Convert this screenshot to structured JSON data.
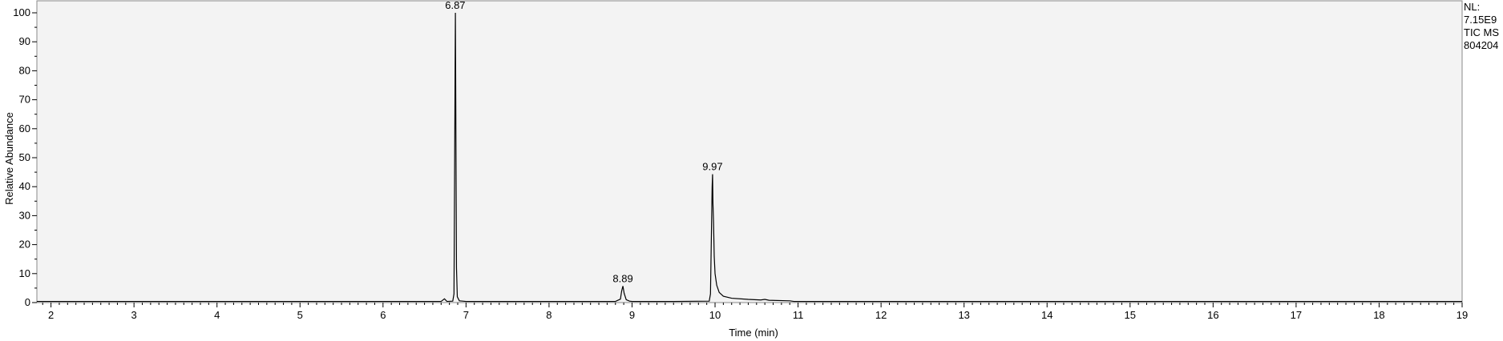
{
  "chart_data": {
    "type": "line",
    "xlabel": "Time (min)",
    "ylabel": "Relative Abundance",
    "xlim": [
      1.83,
      19.0
    ],
    "ylim": [
      0,
      100
    ],
    "x_ticks": [
      2,
      3,
      4,
      5,
      6,
      7,
      8,
      9,
      10,
      11,
      12,
      13,
      14,
      15,
      16,
      17,
      18,
      19
    ],
    "y_ticks": [
      0,
      10,
      20,
      30,
      40,
      50,
      60,
      70,
      80,
      90,
      100
    ],
    "grid": false,
    "line_color": "#000000",
    "series": [
      {
        "values": [
          {
            "x": 1.83,
            "y": 0.4
          },
          {
            "x": 3.0,
            "y": 0.4
          },
          {
            "x": 5.0,
            "y": 0.4
          },
          {
            "x": 6.7,
            "y": 0.4
          },
          {
            "x": 6.74,
            "y": 1.3
          },
          {
            "x": 6.77,
            "y": 0.4
          },
          {
            "x": 6.84,
            "y": 0.5
          },
          {
            "x": 6.855,
            "y": 3.0
          },
          {
            "x": 6.862,
            "y": 42.0
          },
          {
            "x": 6.868,
            "y": 78.0
          },
          {
            "x": 6.872,
            "y": 100.0
          },
          {
            "x": 6.878,
            "y": 60.0
          },
          {
            "x": 6.885,
            "y": 12.0
          },
          {
            "x": 6.895,
            "y": 2.0
          },
          {
            "x": 6.92,
            "y": 0.6
          },
          {
            "x": 7.0,
            "y": 0.4
          },
          {
            "x": 8.0,
            "y": 0.4
          },
          {
            "x": 8.8,
            "y": 0.4
          },
          {
            "x": 8.86,
            "y": 1.2
          },
          {
            "x": 8.875,
            "y": 4.0
          },
          {
            "x": 8.89,
            "y": 5.7
          },
          {
            "x": 8.905,
            "y": 3.2
          },
          {
            "x": 8.93,
            "y": 1.0
          },
          {
            "x": 8.97,
            "y": 0.5
          },
          {
            "x": 9.0,
            "y": 0.4
          },
          {
            "x": 9.5,
            "y": 0.4
          },
          {
            "x": 9.93,
            "y": 0.5
          },
          {
            "x": 9.945,
            "y": 3.0
          },
          {
            "x": 9.955,
            "y": 21.5
          },
          {
            "x": 9.965,
            "y": 40.0
          },
          {
            "x": 9.97,
            "y": 44.3
          },
          {
            "x": 9.975,
            "y": 34.0
          },
          {
            "x": 9.982,
            "y": 27.5
          },
          {
            "x": 9.99,
            "y": 16.0
          },
          {
            "x": 10.0,
            "y": 10.0
          },
          {
            "x": 10.02,
            "y": 6.0
          },
          {
            "x": 10.05,
            "y": 3.5
          },
          {
            "x": 10.1,
            "y": 2.2
          },
          {
            "x": 10.2,
            "y": 1.5
          },
          {
            "x": 10.4,
            "y": 1.1
          },
          {
            "x": 10.55,
            "y": 0.9
          },
          {
            "x": 10.6,
            "y": 1.1
          },
          {
            "x": 10.65,
            "y": 0.8
          },
          {
            "x": 10.9,
            "y": 0.6
          },
          {
            "x": 10.95,
            "y": 0.4
          },
          {
            "x": 12.0,
            "y": 0.4
          },
          {
            "x": 15.0,
            "y": 0.4
          },
          {
            "x": 19.0,
            "y": 0.4
          }
        ]
      }
    ],
    "annotations": [
      {
        "x": 6.87,
        "y": 100,
        "text": "6.87"
      },
      {
        "x": 8.89,
        "y": 5.7,
        "text": "8.89"
      },
      {
        "x": 9.97,
        "y": 44.3,
        "text": "9.97"
      }
    ]
  },
  "info": {
    "nl_label": "NL:",
    "nl_value": "7.15E9",
    "trace": "TIC  MS",
    "file": "804204"
  }
}
